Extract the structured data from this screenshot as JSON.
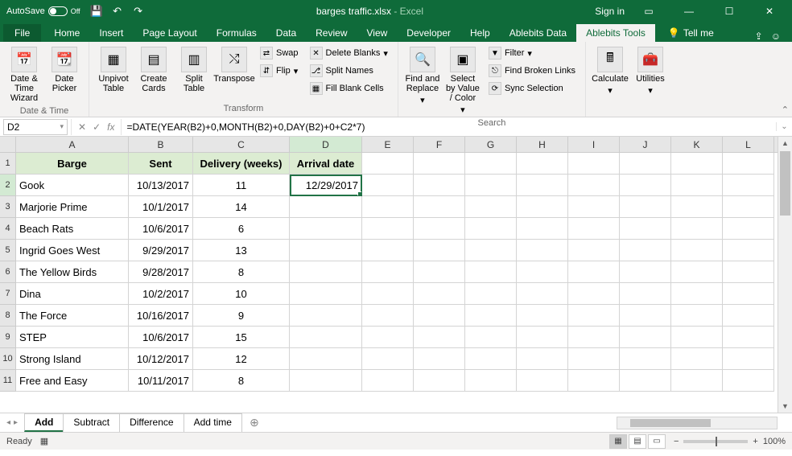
{
  "titlebar": {
    "autosave_label": "AutoSave",
    "autosave_state": "Off",
    "filename": "barges traffic.xlsx",
    "app": "Excel",
    "signin": "Sign in"
  },
  "tabs": {
    "file": "File",
    "home": "Home",
    "insert": "Insert",
    "pagelayout": "Page Layout",
    "formulas": "Formulas",
    "data": "Data",
    "review": "Review",
    "view": "View",
    "developer": "Developer",
    "help": "Help",
    "ablebits_data": "Ablebits Data",
    "ablebits_tools": "Ablebits Tools",
    "tellme": "Tell me"
  },
  "ribbon": {
    "datetime": {
      "btn1": "Date & Time Wizard",
      "btn2": "Date Picker",
      "label": "Date & Time"
    },
    "transform": {
      "unpivot": "Unpivot Table",
      "cards": "Create Cards",
      "split": "Split Table",
      "transpose": "Transpose",
      "swap": "Swap",
      "flip": "Flip",
      "delblanks": "Delete Blanks",
      "splitnames": "Split Names",
      "fillblank": "Fill Blank Cells",
      "label": "Transform"
    },
    "search": {
      "find": "Find and Replace",
      "selectby": "Select by Value / Color",
      "filter": "Filter",
      "broken": "Find Broken Links",
      "sync": "Sync Selection",
      "label": "Search"
    },
    "calc": {
      "calculate": "Calculate",
      "utilities": "Utilities"
    }
  },
  "formula": {
    "cell": "D2",
    "fx": "fx",
    "value": "=DATE(YEAR(B2)+0,MONTH(B2)+0,DAY(B2)+0+C2*7)"
  },
  "columns": [
    "A",
    "B",
    "C",
    "D",
    "E",
    "F",
    "G",
    "H",
    "I",
    "J",
    "K",
    "L"
  ],
  "col_widths": {
    "A": 140,
    "B": 80,
    "C": 120,
    "D": 90,
    "E": 64,
    "F": 64,
    "G": 64,
    "H": 64,
    "I": 64,
    "J": 64,
    "K": 64,
    "L": 64
  },
  "headers": [
    "Barge",
    "Sent",
    "Delivery  (weeks)",
    "Arrival date"
  ],
  "rows": [
    {
      "a": "Gook",
      "b": "10/13/2017",
      "c": "11",
      "d": "12/29/2017"
    },
    {
      "a": "Marjorie Prime",
      "b": "10/1/2017",
      "c": "14",
      "d": ""
    },
    {
      "a": "Beach Rats",
      "b": "10/6/2017",
      "c": "6",
      "d": ""
    },
    {
      "a": "Ingrid Goes West",
      "b": "9/29/2017",
      "c": "13",
      "d": ""
    },
    {
      "a": "The Yellow Birds",
      "b": "9/28/2017",
      "c": "8",
      "d": ""
    },
    {
      "a": "Dina",
      "b": "10/2/2017",
      "c": "10",
      "d": ""
    },
    {
      "a": "The Force",
      "b": "10/16/2017",
      "c": "9",
      "d": ""
    },
    {
      "a": "STEP",
      "b": "10/6/2017",
      "c": "15",
      "d": ""
    },
    {
      "a": "Strong Island",
      "b": "10/12/2017",
      "c": "12",
      "d": ""
    },
    {
      "a": "Free and Easy",
      "b": "10/11/2017",
      "c": "8",
      "d": ""
    }
  ],
  "active_cell": {
    "row": 2,
    "col": "D"
  },
  "sheets": {
    "nav_back": "◂",
    "nav_fwd": "▸",
    "tabs": [
      "Add",
      "Subtract",
      "Difference",
      "Add time"
    ],
    "active": 0
  },
  "status": {
    "ready": "Ready",
    "zoom": "100%"
  },
  "colors": {
    "brand": "#0f6b3a",
    "ribbon_bg": "#f3f2f1",
    "header_cell": "#dcecd2",
    "select": "#217346"
  }
}
